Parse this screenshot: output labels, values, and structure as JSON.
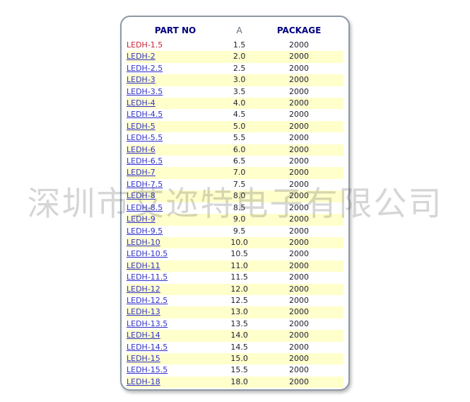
{
  "colors": {
    "header": "#00007e",
    "a_header": "#607080",
    "link": "#3232c8",
    "highlight": "#cc2233",
    "stripe": "#ffffcc",
    "value": "#1f1f2e"
  },
  "watermark": {
    "text": "深圳市艾迩特电子有限公司"
  },
  "table": {
    "headers": [
      {
        "label": "PART NO"
      },
      {
        "label": "A"
      },
      {
        "label": "PACKAGE"
      }
    ],
    "rows": [
      {
        "part": "LEDH-1.5",
        "a": "1.5",
        "package": "2000",
        "highlight": true
      },
      {
        "part": "LEDH-2",
        "a": "2.0",
        "package": "2000"
      },
      {
        "part": "LEDH-2.5",
        "a": "2.5",
        "package": "2000"
      },
      {
        "part": "LEDH-3",
        "a": "3.0",
        "package": "2000"
      },
      {
        "part": "LEDH-3.5",
        "a": "3.5",
        "package": "2000"
      },
      {
        "part": "LEDH-4",
        "a": "4.0",
        "package": "2000"
      },
      {
        "part": "LEDH-4.5",
        "a": "4.5",
        "package": "2000"
      },
      {
        "part": "LEDH-5",
        "a": "5.0",
        "package": "2000"
      },
      {
        "part": "LEDH-5.5",
        "a": "5.5",
        "package": "2000"
      },
      {
        "part": "LEDH-6",
        "a": "6.0",
        "package": "2000"
      },
      {
        "part": "LEDH-6.5",
        "a": "6.5",
        "package": "2000"
      },
      {
        "part": "LEDH-7",
        "a": "7.0",
        "package": "2000"
      },
      {
        "part": "LEDH-7.5",
        "a": "7.5",
        "package": "2000"
      },
      {
        "part": "LEDH-8",
        "a": "8.0",
        "package": "2000"
      },
      {
        "part": "LEDH-8.5",
        "a": "8.5",
        "package": "2000"
      },
      {
        "part": "LEDH-9",
        "a": "9.0",
        "package": "2000"
      },
      {
        "part": "LEDH-9.5",
        "a": "9.5",
        "package": "2000"
      },
      {
        "part": "LEDH-10",
        "a": "10.0",
        "package": "2000"
      },
      {
        "part": "LEDH-10.5",
        "a": "10.5",
        "package": "2000"
      },
      {
        "part": "LEDH-11",
        "a": "11.0",
        "package": "2000"
      },
      {
        "part": "LEDH-11.5",
        "a": "11.5",
        "package": "2000"
      },
      {
        "part": "LEDH-12",
        "a": "12.0",
        "package": "2000"
      },
      {
        "part": "LEDH-12.5",
        "a": "12.5",
        "package": "2000"
      },
      {
        "part": "LEDH-13",
        "a": "13.0",
        "package": "2000"
      },
      {
        "part": "LEDH-13.5",
        "a": "13.5",
        "package": "2000"
      },
      {
        "part": "LEDH-14",
        "a": "14.0",
        "package": "2000"
      },
      {
        "part": "LEDH-14.5",
        "a": "14.5",
        "package": "2000"
      },
      {
        "part": "LEDH-15",
        "a": "15.0",
        "package": "2000"
      },
      {
        "part": "LEDH-15.5",
        "a": "15.5",
        "package": "2000"
      },
      {
        "part": "LEDH-18",
        "a": "18.0",
        "package": "2000"
      }
    ]
  }
}
